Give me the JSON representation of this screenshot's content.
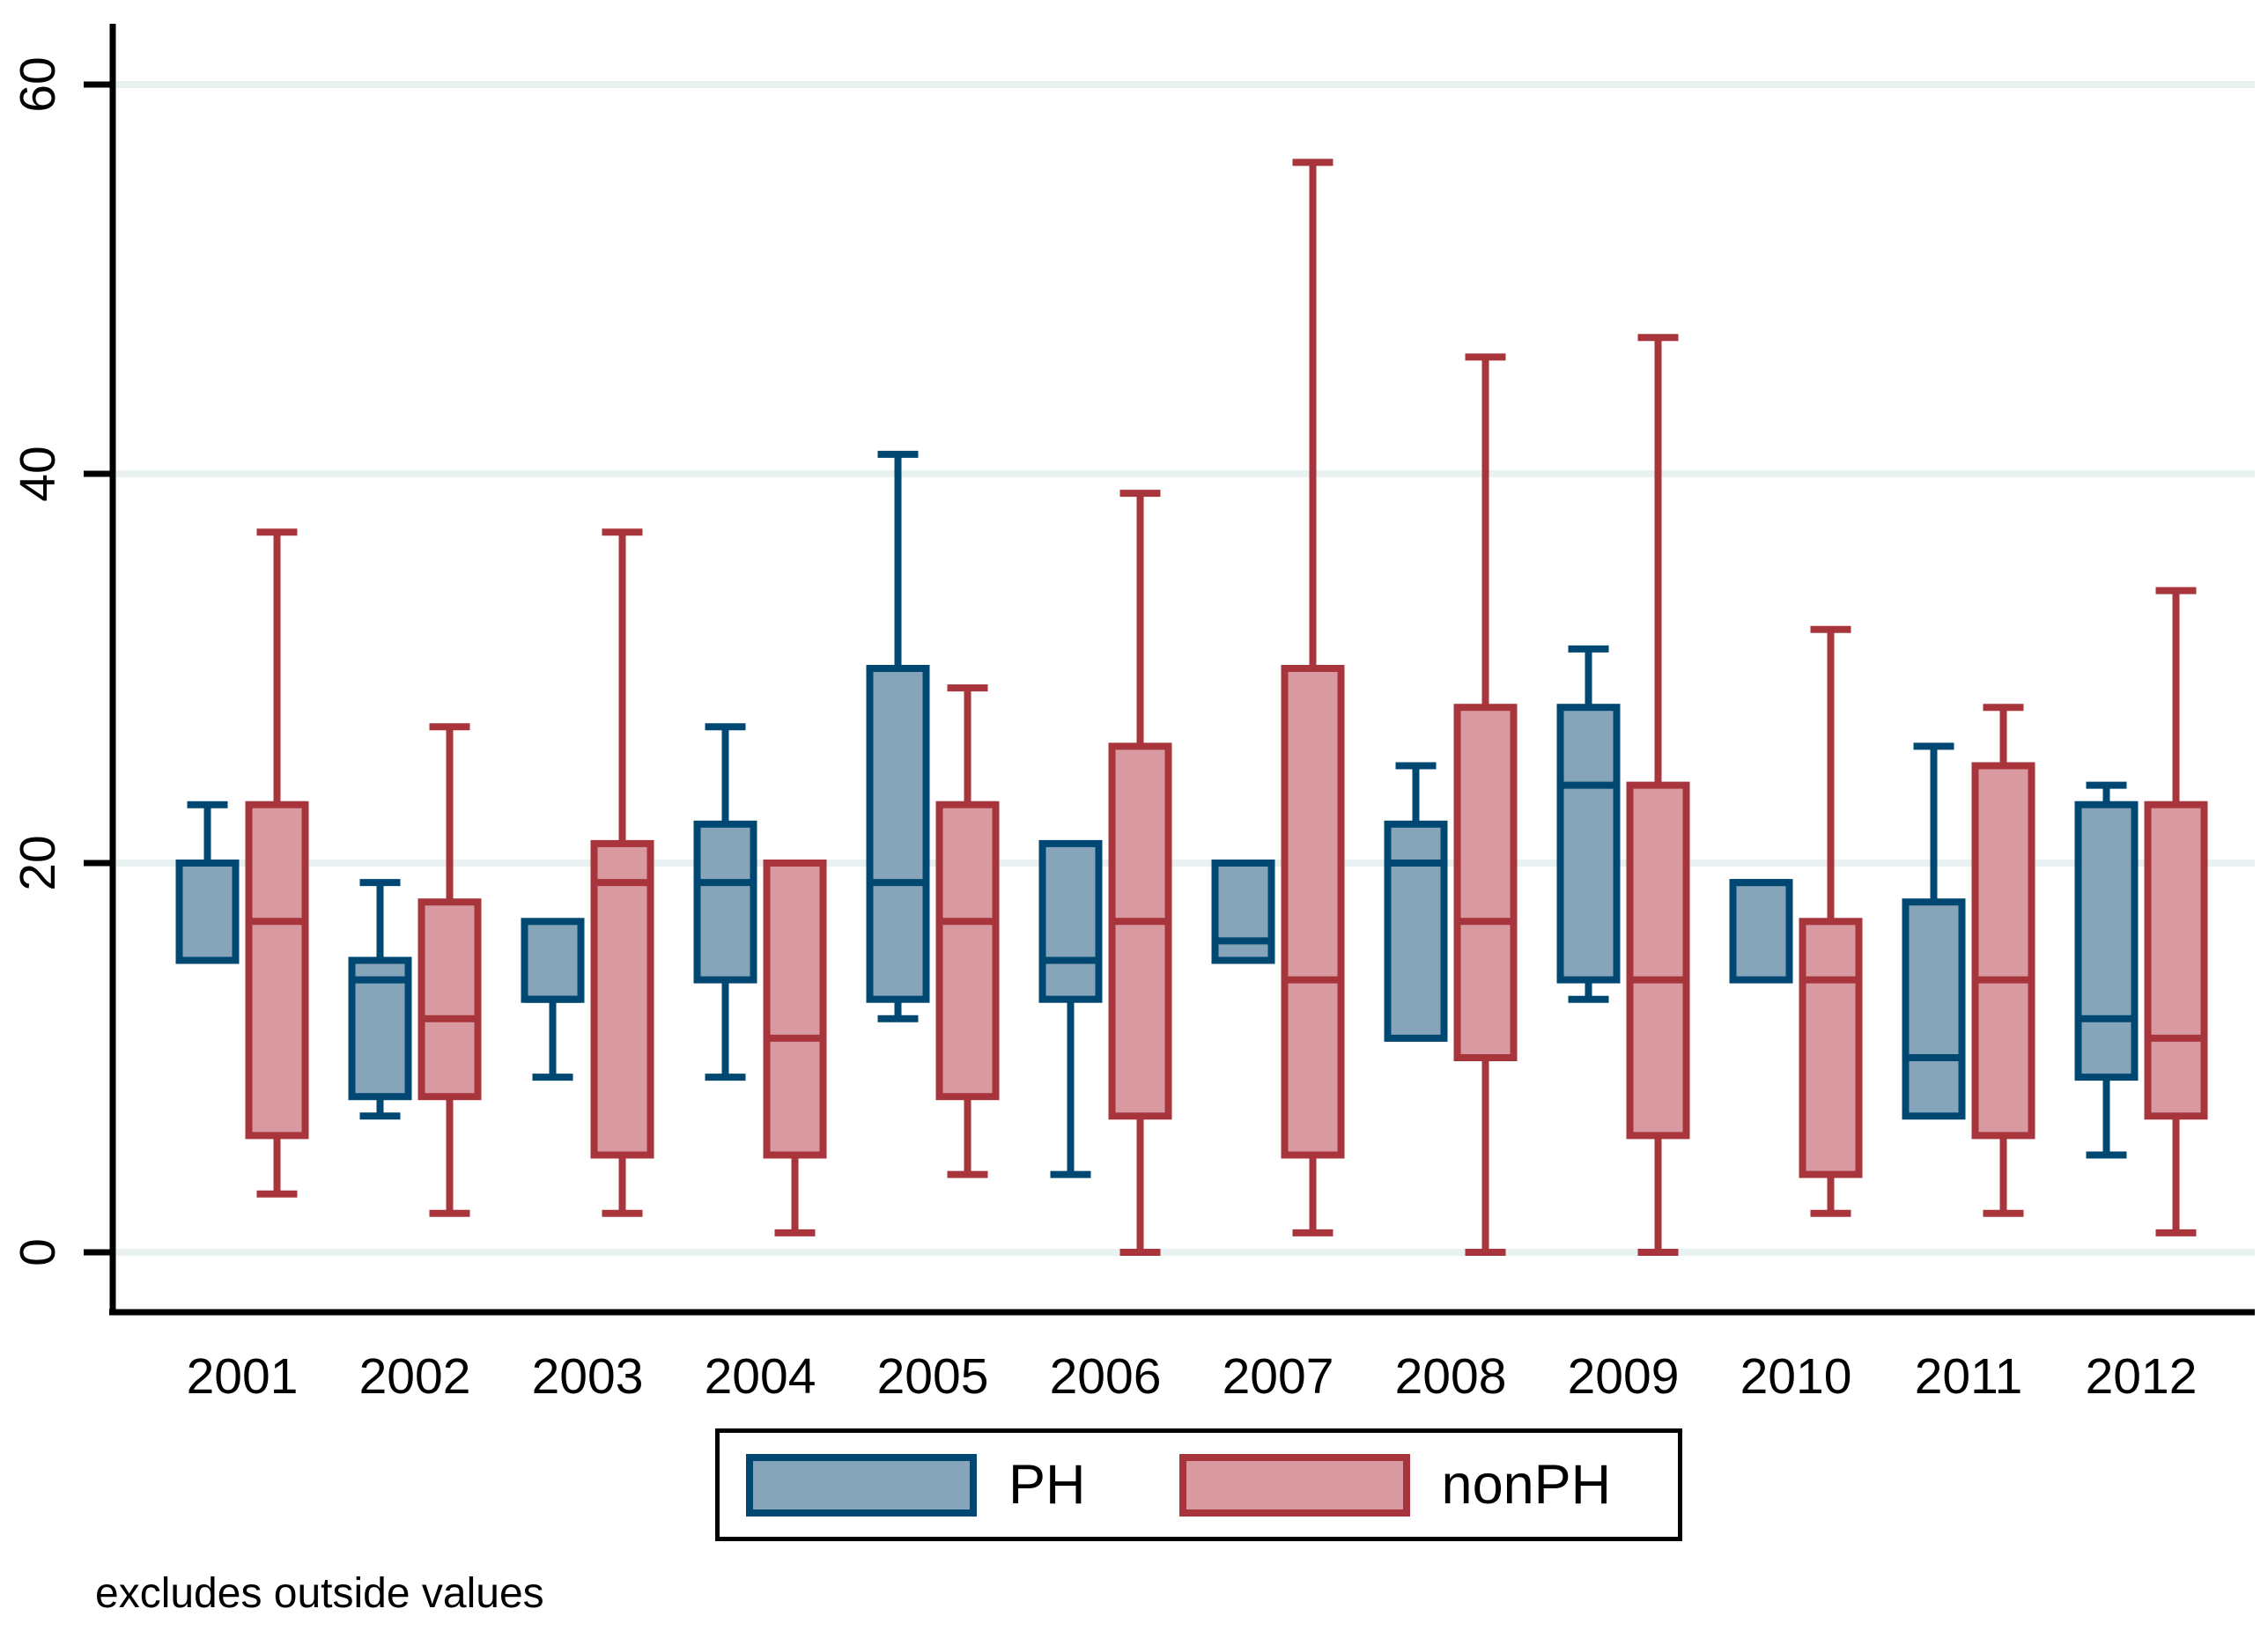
{
  "footnote": "excludes outside values",
  "legend": {
    "ph_label": "PH",
    "nonph_label": "nonPH"
  },
  "colors": {
    "ph_fill": "#87a5ba",
    "ph_border": "#004871",
    "nonph_fill": "#d89aa0",
    "nonph_border": "#a8353c",
    "gridline": "#e9f2f0",
    "axis": "#000000",
    "background": "#ffffff"
  },
  "chart_data": {
    "type": "box",
    "title": "",
    "xlabel": "",
    "ylabel": "",
    "note": "excludes outside values",
    "ylim": [
      0,
      63
    ],
    "yticks": [
      0,
      20,
      40,
      60
    ],
    "grid": true,
    "legend_position": "bottom-center",
    "categories": [
      "2001",
      "2002",
      "2003",
      "2004",
      "2005",
      "2006",
      "2007",
      "2008",
      "2009",
      "2010",
      "2011",
      "2012"
    ],
    "series": [
      {
        "name": "PH",
        "boxes": [
          {
            "low": 15,
            "q1": 15,
            "med": 15,
            "q3": 20,
            "high": 23
          },
          {
            "low": 7,
            "q1": 8,
            "med": 14,
            "q3": 15,
            "high": 19
          },
          {
            "low": 9,
            "q1": 13,
            "med": 13,
            "q3": 17,
            "high": 17
          },
          {
            "low": 9,
            "q1": 14,
            "med": 19,
            "q3": 22,
            "high": 27
          },
          {
            "low": 12,
            "q1": 13,
            "med": 19,
            "q3": 30,
            "high": 41
          },
          {
            "low": 4,
            "q1": 13,
            "med": 15,
            "q3": 21,
            "high": 21
          },
          {
            "low": 15,
            "q1": 15,
            "med": 16,
            "q3": 20,
            "high": 20
          },
          {
            "low": 11,
            "q1": 11,
            "med": 20,
            "q3": 22,
            "high": 25
          },
          {
            "low": 13,
            "q1": 14,
            "med": 24,
            "q3": 28,
            "high": 31
          },
          {
            "low": 14,
            "q1": 14,
            "med": 19,
            "q3": 19,
            "high": 19
          },
          {
            "low": 7,
            "q1": 7,
            "med": 10,
            "q3": 18,
            "high": 26
          },
          {
            "low": 5,
            "q1": 9,
            "med": 12,
            "q3": 23,
            "high": 24
          }
        ]
      },
      {
        "name": "nonPH",
        "boxes": [
          {
            "low": 3,
            "q1": 6,
            "med": 17,
            "q3": 23,
            "high": 37
          },
          {
            "low": 2,
            "q1": 8,
            "med": 12,
            "q3": 18,
            "high": 27
          },
          {
            "low": 2,
            "q1": 5,
            "med": 19,
            "q3": 21,
            "high": 37
          },
          {
            "low": 1,
            "q1": 5,
            "med": 11,
            "q3": 20,
            "high": 20
          },
          {
            "low": 4,
            "q1": 8,
            "med": 17,
            "q3": 23,
            "high": 29
          },
          {
            "low": 0,
            "q1": 7,
            "med": 17,
            "q3": 26,
            "high": 39
          },
          {
            "low": 1,
            "q1": 5,
            "med": 14,
            "q3": 30,
            "high": 56
          },
          {
            "low": 0,
            "q1": 10,
            "med": 17,
            "q3": 28,
            "high": 46
          },
          {
            "low": 0,
            "q1": 6,
            "med": 14,
            "q3": 24,
            "high": 47
          },
          {
            "low": 2,
            "q1": 4,
            "med": 14,
            "q3": 17,
            "high": 32
          },
          {
            "low": 2,
            "q1": 6,
            "med": 14,
            "q3": 25,
            "high": 28
          },
          {
            "low": 1,
            "q1": 7,
            "med": 11,
            "q3": 23,
            "high": 34
          }
        ]
      }
    ]
  }
}
